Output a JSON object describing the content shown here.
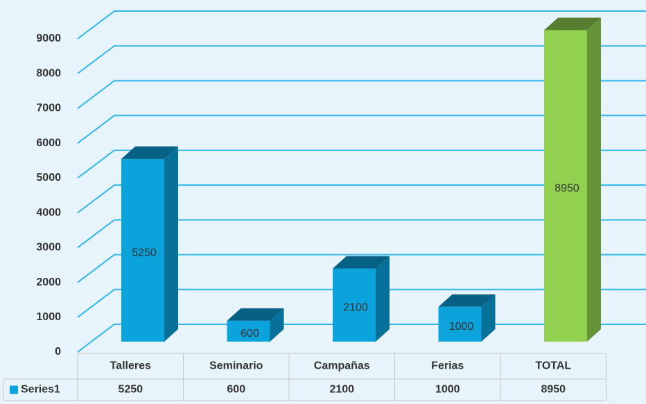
{
  "chart_data": {
    "type": "bar3d",
    "categories": [
      "Talleres",
      "Seminario",
      "Campañas",
      "Ferias",
      "TOTAL"
    ],
    "series": [
      {
        "name": "Series1",
        "color": "#0ca2dc",
        "values": [
          5250,
          600,
          2100,
          1000,
          8950
        ]
      }
    ],
    "point_colors": [
      "#0ca2dc",
      "#0ca2dc",
      "#0ca2dc",
      "#0ca2dc",
      "#92d050"
    ],
    "ylim": [
      0,
      9000
    ],
    "yticks": [
      0,
      1000,
      2000,
      3000,
      4000,
      5000,
      6000,
      7000,
      8000,
      9000
    ],
    "grid": true,
    "data_table": true
  }
}
